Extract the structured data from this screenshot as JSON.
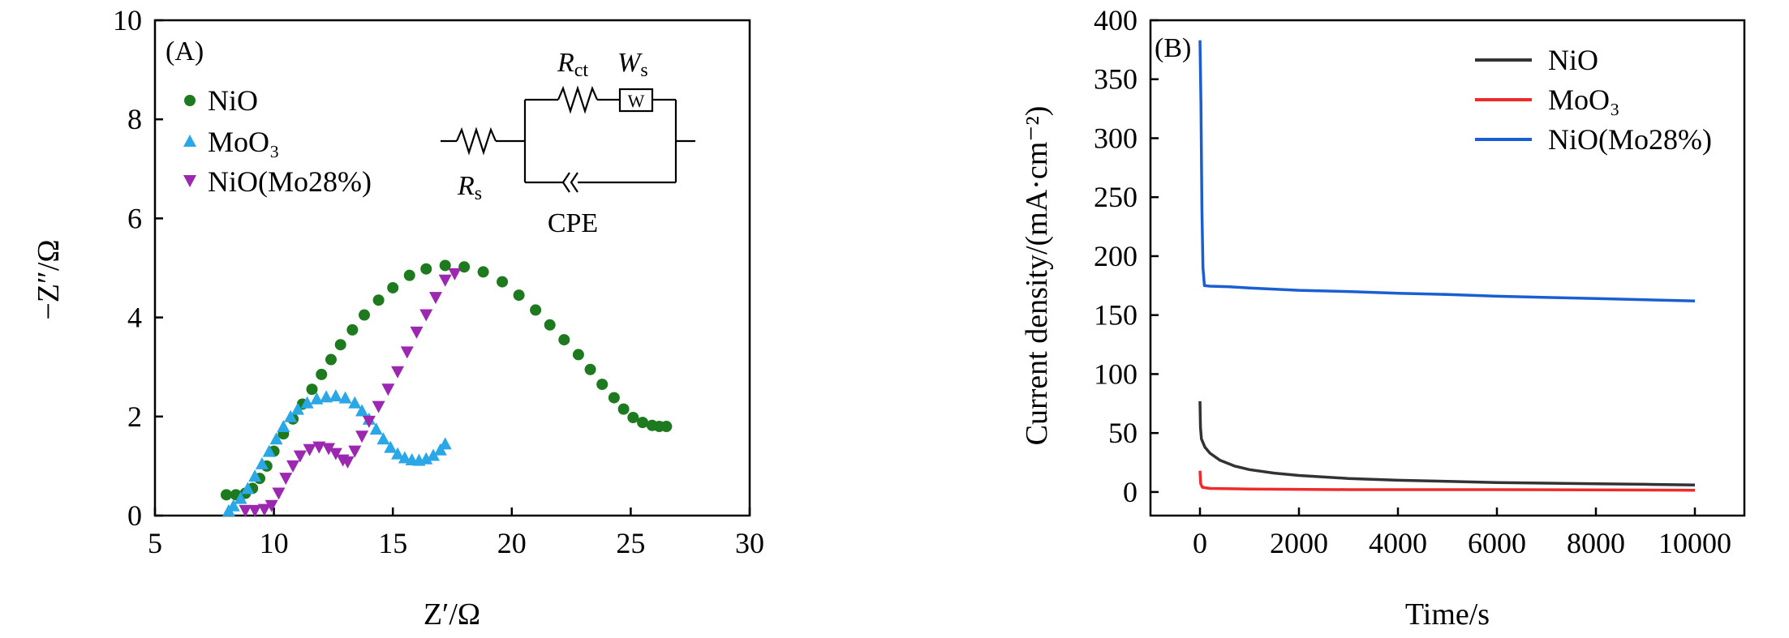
{
  "chart_data": [
    {
      "type": "scatter",
      "panel": "(A)",
      "xlabel": "Z′/Ω",
      "ylabel": "−Z″/Ω",
      "xlim": [
        5,
        30
      ],
      "ylim": [
        0,
        10
      ],
      "x_ticks": [
        5,
        10,
        15,
        20,
        25,
        30
      ],
      "y_ticks": [
        0,
        2,
        4,
        6,
        8,
        10
      ],
      "legend_position": "top-left",
      "inset": {
        "type": "equivalent-circuit",
        "labels": {
          "rct": "R",
          "rct_sub": "ct",
          "ws": "W",
          "ws_sub": "s",
          "w_box": "W",
          "rs": "R",
          "rs_sub": "s",
          "cpe": "CPE"
        }
      },
      "series": [
        {
          "name": "NiO",
          "marker": "circle",
          "color": "#1e7a1e",
          "points": [
            [
              8.0,
              0.42
            ],
            [
              8.4,
              0.42
            ],
            [
              8.8,
              0.45
            ],
            [
              9.1,
              0.55
            ],
            [
              9.4,
              0.75
            ],
            [
              9.7,
              1.0
            ],
            [
              10.0,
              1.3
            ],
            [
              10.4,
              1.65
            ],
            [
              10.8,
              1.95
            ],
            [
              11.2,
              2.25
            ],
            [
              11.6,
              2.55
            ],
            [
              12.0,
              2.85
            ],
            [
              12.4,
              3.15
            ],
            [
              12.8,
              3.45
            ],
            [
              13.3,
              3.75
            ],
            [
              13.8,
              4.05
            ],
            [
              14.4,
              4.35
            ],
            [
              15.0,
              4.6
            ],
            [
              15.7,
              4.85
            ],
            [
              16.4,
              4.98
            ],
            [
              17.2,
              5.05
            ],
            [
              18.0,
              5.02
            ],
            [
              18.8,
              4.92
            ],
            [
              19.6,
              4.72
            ],
            [
              20.3,
              4.45
            ],
            [
              21.0,
              4.15
            ],
            [
              21.6,
              3.85
            ],
            [
              22.2,
              3.55
            ],
            [
              22.8,
              3.25
            ],
            [
              23.3,
              2.95
            ],
            [
              23.8,
              2.65
            ],
            [
              24.3,
              2.38
            ],
            [
              24.7,
              2.15
            ],
            [
              25.1,
              1.98
            ],
            [
              25.5,
              1.88
            ],
            [
              25.9,
              1.82
            ],
            [
              26.2,
              1.8
            ],
            [
              26.5,
              1.8
            ]
          ]
        },
        {
          "name": "MoO₃",
          "marker": "triangle-up",
          "color": "#2aa7e6",
          "points": [
            [
              8.1,
              0.1
            ],
            [
              8.3,
              0.2
            ],
            [
              8.6,
              0.35
            ],
            [
              8.9,
              0.55
            ],
            [
              9.2,
              0.8
            ],
            [
              9.5,
              1.05
            ],
            [
              9.8,
              1.3
            ],
            [
              10.1,
              1.55
            ],
            [
              10.4,
              1.8
            ],
            [
              10.7,
              2.0
            ],
            [
              11.0,
              2.15
            ],
            [
              11.4,
              2.28
            ],
            [
              11.8,
              2.36
            ],
            [
              12.2,
              2.4
            ],
            [
              12.6,
              2.42
            ],
            [
              13.0,
              2.38
            ],
            [
              13.4,
              2.28
            ],
            [
              13.7,
              2.12
            ],
            [
              14.0,
              1.95
            ],
            [
              14.3,
              1.75
            ],
            [
              14.6,
              1.55
            ],
            [
              14.9,
              1.38
            ],
            [
              15.2,
              1.25
            ],
            [
              15.5,
              1.17
            ],
            [
              15.8,
              1.13
            ],
            [
              16.1,
              1.12
            ],
            [
              16.4,
              1.15
            ],
            [
              16.7,
              1.22
            ],
            [
              17.0,
              1.33
            ],
            [
              17.2,
              1.45
            ]
          ]
        },
        {
          "name": "NiO(Mo28%)",
          "marker": "triangle-down",
          "color": "#9c27b0",
          "points": [
            [
              8.8,
              0.1
            ],
            [
              9.2,
              0.1
            ],
            [
              9.6,
              0.12
            ],
            [
              9.9,
              0.2
            ],
            [
              10.2,
              0.45
            ],
            [
              10.5,
              0.75
            ],
            [
              10.8,
              1.0
            ],
            [
              11.1,
              1.2
            ],
            [
              11.5,
              1.33
            ],
            [
              11.9,
              1.38
            ],
            [
              12.3,
              1.35
            ],
            [
              12.6,
              1.25
            ],
            [
              12.9,
              1.12
            ],
            [
              13.1,
              1.08
            ],
            [
              13.4,
              1.3
            ],
            [
              13.7,
              1.6
            ],
            [
              14.0,
              1.9
            ],
            [
              14.4,
              2.2
            ],
            [
              14.8,
              2.55
            ],
            [
              15.2,
              2.9
            ],
            [
              15.6,
              3.3
            ],
            [
              16.0,
              3.7
            ],
            [
              16.4,
              4.05
            ],
            [
              16.8,
              4.4
            ],
            [
              17.2,
              4.75
            ],
            [
              17.6,
              4.88
            ]
          ]
        }
      ]
    },
    {
      "type": "line",
      "panel": "(B)",
      "xlabel": "Time/s",
      "ylabel": "Current density/(mA·cm⁻²)",
      "xlim": [
        -1000,
        11000
      ],
      "ylim": [
        -20,
        400
      ],
      "x_ticks": [
        0,
        2000,
        4000,
        6000,
        8000,
        10000
      ],
      "y_ticks": [
        0,
        50,
        100,
        150,
        200,
        250,
        300,
        350,
        400
      ],
      "legend_position": "top-right",
      "series": [
        {
          "name": "NiO",
          "color": "#333333",
          "points": [
            [
              0,
              77
            ],
            [
              10,
              55
            ],
            [
              30,
              45
            ],
            [
              100,
              38
            ],
            [
              200,
              33
            ],
            [
              400,
              27
            ],
            [
              700,
              22
            ],
            [
              1000,
              19
            ],
            [
              1500,
              16
            ],
            [
              2000,
              14
            ],
            [
              3000,
              11.5
            ],
            [
              4000,
              10
            ],
            [
              5000,
              9
            ],
            [
              6000,
              8
            ],
            [
              7000,
              7.5
            ],
            [
              8000,
              7
            ],
            [
              9000,
              6.5
            ],
            [
              10000,
              6
            ]
          ]
        },
        {
          "name": "MoO₃",
          "color": "#ee2b2b",
          "points": [
            [
              0,
              18
            ],
            [
              15,
              7
            ],
            [
              50,
              4
            ],
            [
              200,
              3
            ],
            [
              1000,
              2.5
            ],
            [
              3000,
              2
            ],
            [
              6000,
              2
            ],
            [
              10000,
              1.5
            ]
          ]
        },
        {
          "name": "NiO(Mo28%)",
          "color": "#1a5fd1",
          "points": [
            [
              0,
              383
            ],
            [
              20,
              330
            ],
            [
              40,
              240
            ],
            [
              60,
              190
            ],
            [
              90,
              175
            ],
            [
              200,
              174.5
            ],
            [
              600,
              174
            ],
            [
              1000,
              173
            ],
            [
              2000,
              171
            ],
            [
              3000,
              170
            ],
            [
              4000,
              168.5
            ],
            [
              5000,
              167.5
            ],
            [
              6000,
              166
            ],
            [
              7000,
              165
            ],
            [
              8000,
              164
            ],
            [
              9000,
              163
            ],
            [
              10000,
              162
            ]
          ]
        }
      ]
    }
  ]
}
